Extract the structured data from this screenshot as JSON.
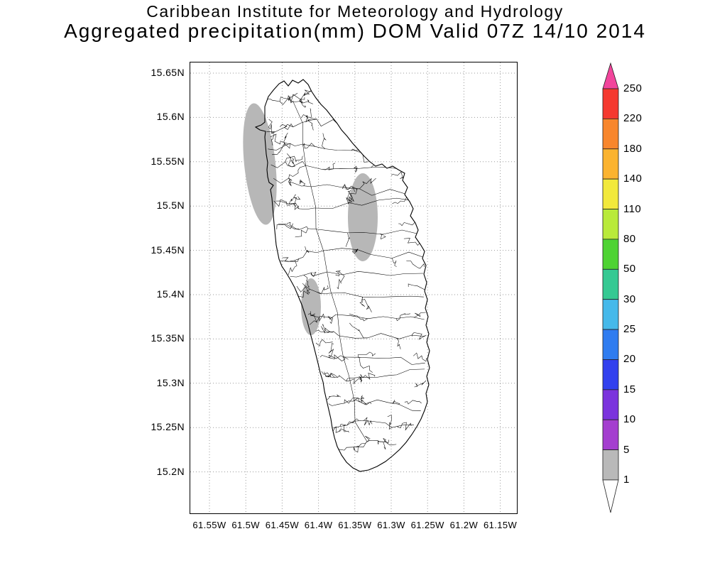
{
  "header": {
    "title_line1": "Caribbean Institute for Meteorology and Hydrology",
    "title_line2": "Aggregated precipitation(mm) DOM Valid 07Z 14/10 2014"
  },
  "axes": {
    "lat_ticks": [
      "15.65N",
      "15.6N",
      "15.55N",
      "15.5N",
      "15.45N",
      "15.4N",
      "15.35N",
      "15.3N",
      "15.25N",
      "15.2N"
    ],
    "lon_ticks": [
      "61.55W",
      "61.5W",
      "61.45W",
      "61.4W",
      "61.35W",
      "61.3W",
      "61.25W",
      "61.2W",
      "61.15W"
    ]
  },
  "colorbar": {
    "tick_labels_top_to_bottom": [
      "250",
      "220",
      "180",
      "140",
      "110",
      "80",
      "50",
      "30",
      "25",
      "20",
      "15",
      "10",
      "5",
      "1"
    ],
    "segment_colors_top_to_bottom": [
      "#f5392f",
      "#f8862c",
      "#fbb32f",
      "#f2e93b",
      "#b9ea3a",
      "#4ed333",
      "#35c993",
      "#45b9ea",
      "#2f7cf0",
      "#3240ee",
      "#7b33dd",
      "#a43ecf",
      "#b9b9b9"
    ],
    "arrow_top_color": "#f2459c",
    "arrow_bottom_color": "#ffffff"
  },
  "precipitation": {
    "unit": "mm",
    "shaded_areas": [
      {
        "area": "northwest-coast",
        "level": "1-5",
        "color": "#b7b7b7"
      },
      {
        "area": "central-interior",
        "level": "1-5",
        "color": "#b7b7b7"
      },
      {
        "area": "west-coast-south",
        "level": "1-5",
        "color": "#b7b7b7"
      }
    ]
  }
}
